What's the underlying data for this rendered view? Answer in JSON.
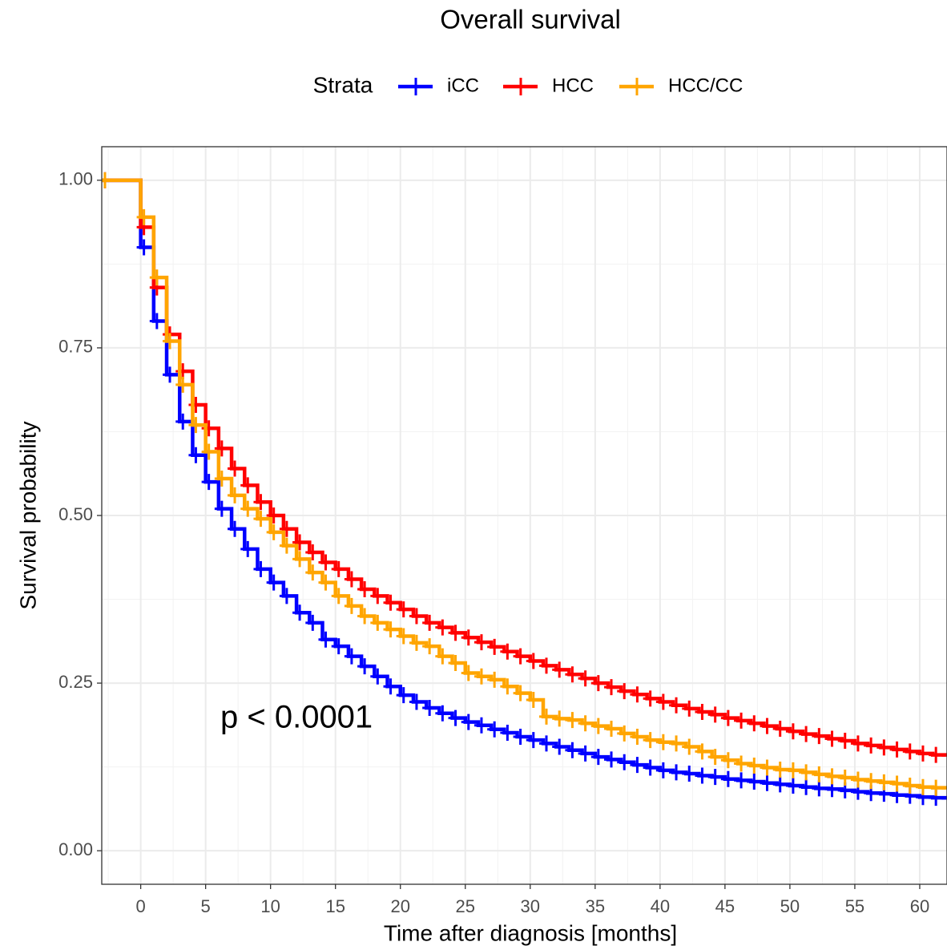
{
  "chart_data": {
    "type": "step",
    "title": "Overall survival",
    "legend_title": "Strata",
    "legend_position": "top",
    "annotation": "p < 0.0001",
    "x_label": "Time after diagnosis [months]",
    "y_label": "Survival probability",
    "xlim": [
      -3,
      62.1
    ],
    "ylim": [
      -0.05,
      1.05
    ],
    "xticks": [
      0,
      5,
      10,
      15,
      20,
      25,
      30,
      35,
      40,
      45,
      50,
      55,
      60
    ],
    "yticks": [
      {
        "value": 0,
        "label": "0.00"
      },
      0.25,
      {
        "value": 0.5,
        "label": "0.50"
      },
      0.75,
      {
        "value": 1,
        "label": "1.00"
      }
    ],
    "grid": true,
    "x": [
      -3,
      0,
      1,
      2,
      3,
      4,
      5,
      6,
      7,
      8,
      9,
      10,
      11,
      12,
      13,
      14,
      15,
      16,
      17,
      18,
      19,
      20,
      21,
      22,
      23,
      24,
      25,
      26,
      27,
      28,
      29,
      30,
      31,
      32,
      33,
      34,
      35,
      36,
      37,
      38,
      39,
      40,
      41,
      42,
      43,
      44,
      45,
      46,
      47,
      48,
      49,
      50,
      51,
      52,
      53,
      54,
      55,
      56,
      57,
      58,
      59,
      60,
      61,
      62
    ],
    "series": [
      {
        "name": "iCC",
        "color": "#0000ff",
        "values": [
          1,
          0.9,
          0.79,
          0.71,
          0.64,
          0.59,
          0.55,
          0.51,
          0.48,
          0.45,
          0.42,
          0.4,
          0.38,
          0.355,
          0.34,
          0.315,
          0.305,
          0.29,
          0.275,
          0.26,
          0.245,
          0.232,
          0.222,
          0.213,
          0.205,
          0.198,
          0.192,
          0.187,
          0.181,
          0.176,
          0.17,
          0.165,
          0.16,
          0.155,
          0.15,
          0.145,
          0.14,
          0.136,
          0.132,
          0.128,
          0.124,
          0.12,
          0.117,
          0.115,
          0.112,
          0.11,
          0.107,
          0.105,
          0.103,
          0.101,
          0.099,
          0.097,
          0.095,
          0.093,
          0.092,
          0.09,
          0.088,
          0.086,
          0.085,
          0.083,
          0.082,
          0.08,
          0.079,
          0.078
        ]
      },
      {
        "name": "HCC",
        "color": "#ff0000",
        "values": [
          1,
          0.93,
          0.84,
          0.77,
          0.715,
          0.665,
          0.63,
          0.6,
          0.57,
          0.545,
          0.52,
          0.5,
          0.48,
          0.46,
          0.445,
          0.43,
          0.42,
          0.405,
          0.39,
          0.38,
          0.37,
          0.36,
          0.35,
          0.34,
          0.333,
          0.325,
          0.318,
          0.311,
          0.304,
          0.297,
          0.29,
          0.283,
          0.276,
          0.27,
          0.263,
          0.257,
          0.25,
          0.244,
          0.238,
          0.233,
          0.227,
          0.222,
          0.217,
          0.212,
          0.207,
          0.203,
          0.198,
          0.194,
          0.19,
          0.186,
          0.182,
          0.178,
          0.174,
          0.171,
          0.167,
          0.164,
          0.16,
          0.157,
          0.154,
          0.151,
          0.148,
          0.145,
          0.143,
          0.142
        ]
      },
      {
        "name": "HCC/CC",
        "color": "#ffa500",
        "values": [
          1,
          0.945,
          0.855,
          0.76,
          0.695,
          0.635,
          0.595,
          0.555,
          0.53,
          0.51,
          0.495,
          0.475,
          0.455,
          0.435,
          0.415,
          0.4,
          0.38,
          0.365,
          0.35,
          0.34,
          0.33,
          0.32,
          0.31,
          0.305,
          0.29,
          0.28,
          0.265,
          0.26,
          0.255,
          0.245,
          0.235,
          0.225,
          0.2,
          0.197,
          0.195,
          0.19,
          0.186,
          0.182,
          0.175,
          0.17,
          0.165,
          0.162,
          0.16,
          0.155,
          0.148,
          0.14,
          0.135,
          0.13,
          0.127,
          0.124,
          0.121,
          0.12,
          0.117,
          0.114,
          0.111,
          0.109,
          0.106,
          0.104,
          0.102,
          0.1,
          0.097,
          0.095,
          0.094,
          0.093
        ]
      }
    ]
  }
}
